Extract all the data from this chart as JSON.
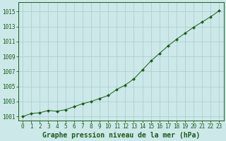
{
  "hours": [
    0,
    1,
    2,
    3,
    4,
    5,
    6,
    7,
    8,
    9,
    10,
    11,
    12,
    13,
    14,
    15,
    16,
    17,
    18,
    19,
    20,
    21,
    22,
    23
  ],
  "line_color": "#1a5c1a",
  "marker_color": "#1a5c1a",
  "bg_color": "#cce8e8",
  "grid_color": "#a8cccc",
  "xlabel": "Graphe pression niveau de la mer (hPa)",
  "ylim": [
    1000.5,
    1016.2
  ],
  "yticks": [
    1001,
    1003,
    1005,
    1007,
    1009,
    1011,
    1013,
    1015
  ],
  "xticks": [
    0,
    1,
    2,
    3,
    4,
    5,
    6,
    7,
    8,
    9,
    10,
    11,
    12,
    13,
    14,
    15,
    16,
    17,
    18,
    19,
    20,
    21,
    22,
    23
  ],
  "tick_fontsize": 5.5,
  "xlabel_fontsize": 7.0
}
